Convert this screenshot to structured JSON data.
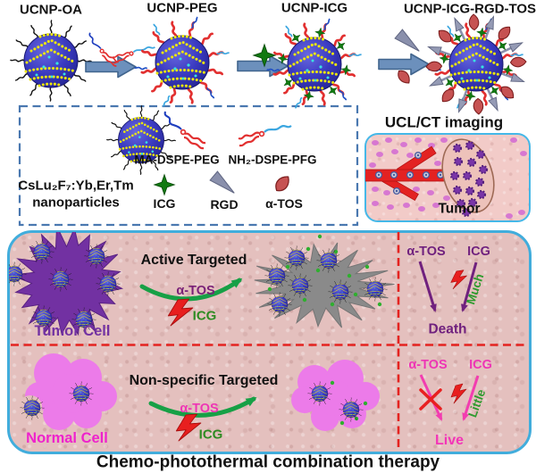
{
  "synthesis": {
    "stages": [
      {
        "label": "UCNP-OA"
      },
      {
        "label": "UCNP-PEG"
      },
      {
        "label": "UCNP-ICG"
      },
      {
        "label": "UCNP-ICG-RGD-TOS"
      }
    ]
  },
  "legend": {
    "particle_line1": "CsLu₂F₇:Yb,Er,Tm",
    "particle_line2": "nanoparticles",
    "ma_dspe_peg": "MA-DSPE-PEG",
    "nh2_dspe_pfg": "NH₂-DSPE-PFG",
    "icg": "ICG",
    "rgd": "RGD",
    "a_tos": "α-TOS"
  },
  "imaging": {
    "title": "UCL/CT imaging",
    "tumor": "Tumor"
  },
  "therapy": {
    "caption": "Chemo-photothermal combination therapy",
    "active": {
      "title": "Active Targeted",
      "cell": "Tumor Cell",
      "a_tos": "α-TOS",
      "icg": "ICG"
    },
    "active_outcome": {
      "a_tos": "α-TOS",
      "icg": "ICG",
      "amount": "Much",
      "result": "Death"
    },
    "nonspecific": {
      "title": "Non-specific Targeted",
      "cell": "Normal Cell",
      "a_tos": "α-TOS",
      "icg": "ICG"
    },
    "nonspecific_outcome": {
      "a_tos": "α-TOS",
      "icg": "ICG",
      "amount": "Little",
      "result": "Live"
    }
  },
  "colors": {
    "panel_border": "#41ADDC",
    "panel_bg": "#E4C0BE",
    "divider_red": "#E42320",
    "tumor_purple": "#7231A2",
    "normal_cell_pink": "#EC7BE9",
    "dead_cell_gray": "#8A8A8A",
    "green_arrow": "#17A046",
    "purple_text": "#70217E",
    "magenta_text": "#EE35B5",
    "green_text": "#2E9B2E",
    "block_arrow_blue": "#6C90BC"
  }
}
